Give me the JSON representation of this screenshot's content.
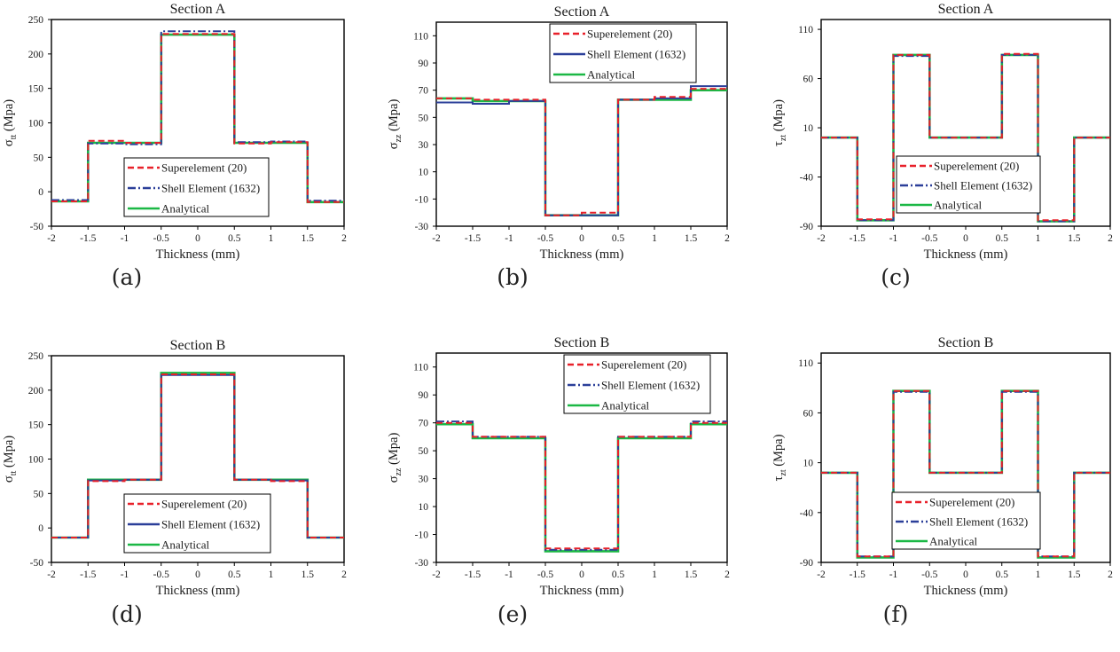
{
  "colors": {
    "superelement": "#e8212a",
    "shell": "#2b3f99",
    "analytical": "#1bb845",
    "axis": "#000000",
    "text": "#1a1a1a"
  },
  "captions": [
    "(a)",
    "(b)",
    "(c)",
    "(d)",
    "(e)",
    "(f)"
  ],
  "chart_data": [
    {
      "type": "line",
      "title": "Section A",
      "xlabel": "Thickness (mm)",
      "ylabel": "σ",
      "ylabel_sub": "tt",
      "ylabel_unit": " (Mpa)",
      "xlim": [
        -2,
        2
      ],
      "ylim": [
        -50,
        250
      ],
      "xticks": [
        -2,
        -1.5,
        -1,
        -0.5,
        0,
        0.5,
        1,
        1.5,
        2
      ],
      "xtick_labels": [
        "-2",
        "-1.5",
        "-1",
        "-0.5",
        "0",
        "0.5",
        "1",
        "1.5",
        "2"
      ],
      "yticks": [
        -50,
        0,
        50,
        100,
        150,
        200,
        250
      ],
      "ytick_labels": [
        "-50",
        "0",
        "50",
        "100",
        "150",
        "200",
        "250"
      ],
      "legend": {
        "position": "bottom-center"
      },
      "series": [
        {
          "name": "Superelement (20)",
          "style": "dashed",
          "color_key": "superelement",
          "x": [
            -2,
            -1.5,
            -1.5,
            -1,
            -1,
            -0.5,
            -0.5,
            0.5,
            0.5,
            1,
            1,
            1.5,
            1.5,
            2
          ],
          "y": [
            -14,
            -14,
            74,
            74,
            71,
            71,
            229,
            229,
            70,
            70,
            72,
            72,
            -15,
            -15
          ]
        },
        {
          "name": "Shell Element (1632)",
          "style": "dashdot",
          "color_key": "shell",
          "x": [
            -2,
            -1.5,
            -1.5,
            -1,
            -1,
            -0.5,
            -0.5,
            0.5,
            0.5,
            1,
            1,
            1.5,
            1.5,
            2
          ],
          "y": [
            -12,
            -12,
            70,
            70,
            69,
            69,
            233,
            233,
            72,
            72,
            73,
            73,
            -13,
            -13
          ]
        },
        {
          "name": "Analytical",
          "style": "solid",
          "color_key": "analytical",
          "x": [
            -2,
            -1.5,
            -1.5,
            -0.5,
            -0.5,
            0.5,
            0.5,
            1.5,
            1.5,
            2
          ],
          "y": [
            -14,
            -14,
            71,
            71,
            228,
            228,
            71,
            71,
            -15,
            -15
          ]
        }
      ]
    },
    {
      "type": "line",
      "title": "Section A",
      "xlabel": "Thickness (mm)",
      "ylabel": "σ",
      "ylabel_sub": "zz",
      "ylabel_unit": " (Mpa)",
      "xlim": [
        -2,
        2
      ],
      "ylim": [
        -30,
        120
      ],
      "xticks": [
        -2,
        -1.5,
        -1,
        -0.5,
        0,
        0.5,
        1,
        1.5,
        2
      ],
      "xtick_labels": [
        "-2",
        "-1.5",
        "-1",
        "-0.5",
        "0",
        "0.5",
        "1",
        "1.5",
        "2"
      ],
      "yticks": [
        -30,
        -10,
        10,
        30,
        50,
        70,
        90,
        110
      ],
      "ytick_labels": [
        "-30",
        "-10",
        "10",
        "30",
        "50",
        "70",
        "90",
        "110"
      ],
      "legend": {
        "position": "top-right"
      },
      "series": [
        {
          "name": "Superelement (20)",
          "style": "dashed",
          "color_key": "superelement",
          "x": [
            -2,
            -1.5,
            -1.5,
            -0.5,
            -0.5,
            0,
            0,
            0.5,
            0.5,
            1,
            1,
            1.5,
            1.5,
            2
          ],
          "y": [
            64,
            64,
            63,
            63,
            -22,
            -22,
            -20,
            -20,
            63,
            63,
            65,
            65,
            71,
            71
          ]
        },
        {
          "name": "Shell Element (1632)",
          "style": "solid",
          "color_key": "shell",
          "x": [
            -2,
            -1.5,
            -1.5,
            -1,
            -1,
            -0.5,
            -0.5,
            0.5,
            0.5,
            1,
            1,
            1.5,
            1.5,
            2
          ],
          "y": [
            61,
            61,
            60,
            60,
            62,
            62,
            -22,
            -22,
            63,
            63,
            64,
            64,
            73,
            73
          ]
        },
        {
          "name": "Analytical",
          "style": "solid",
          "color_key": "analytical",
          "x": [
            -2,
            -1.5,
            -1.5,
            -0.5,
            -0.5,
            0.5,
            0.5,
            1.5,
            1.5,
            2
          ],
          "y": [
            64,
            64,
            62,
            62,
            -22,
            -22,
            63,
            63,
            70,
            70
          ]
        }
      ]
    },
    {
      "type": "line",
      "title": "Section A",
      "xlabel": "Thickness (mm)",
      "ylabel": "τ",
      "ylabel_sub": "zt",
      "ylabel_unit": " (Mpa)",
      "xlim": [
        -2,
        2
      ],
      "ylim": [
        -90,
        120
      ],
      "xticks": [
        -2,
        -1.5,
        -1,
        -0.5,
        0,
        0.5,
        1,
        1.5,
        2
      ],
      "xtick_labels": [
        "-2",
        "-1.5",
        "-1",
        "-0.5",
        "0",
        "0.5",
        "1",
        "1.5",
        "2"
      ],
      "yticks": [
        -90,
        -40,
        10,
        60,
        110
      ],
      "ytick_labels": [
        "-90",
        "-40",
        "10",
        "60",
        "110"
      ],
      "legend": {
        "position": "bottom-center"
      },
      "series": [
        {
          "name": "Superelement (20)",
          "style": "dashed",
          "color_key": "superelement",
          "x": [
            -2,
            -1.5,
            -1.5,
            -1,
            -1,
            -0.5,
            -0.5,
            0.5,
            0.5,
            1,
            1,
            1.5,
            1.5,
            2
          ],
          "y": [
            0,
            0,
            -83,
            -83,
            84,
            84,
            0,
            0,
            85,
            85,
            -84,
            -84,
            0,
            0
          ]
        },
        {
          "name": "Shell Element (1632)",
          "style": "dashdot",
          "color_key": "shell",
          "x": [
            -2,
            -1.5,
            -1.5,
            -1,
            -1,
            -0.5,
            -0.5,
            0.5,
            0.5,
            1,
            1,
            1.5,
            1.5,
            2
          ],
          "y": [
            0,
            0,
            -84,
            -84,
            83,
            83,
            0,
            0,
            84,
            84,
            -85,
            -85,
            0,
            0
          ]
        },
        {
          "name": "Analytical",
          "style": "solid",
          "color_key": "analytical",
          "x": [
            -2,
            -1.5,
            -1.5,
            -1,
            -1,
            -0.5,
            -0.5,
            0.5,
            0.5,
            1,
            1,
            1.5,
            1.5,
            2
          ],
          "y": [
            0,
            0,
            -84,
            -84,
            84,
            84,
            0,
            0,
            84,
            84,
            -85,
            -85,
            0,
            0
          ]
        }
      ]
    },
    {
      "type": "line",
      "title": "Section B",
      "xlabel": "Thickness (mm)",
      "ylabel": "σ",
      "ylabel_sub": "tt",
      "ylabel_unit": " (Mpa)",
      "xlim": [
        -2,
        2
      ],
      "ylim": [
        -50,
        250
      ],
      "xticks": [
        -2,
        -1.5,
        -1,
        -0.5,
        0,
        0.5,
        1,
        1.5,
        2
      ],
      "xtick_labels": [
        "-2",
        "-1.5",
        "-1",
        "-0.5",
        "0",
        "0.5",
        "1",
        "1.5",
        "2"
      ],
      "yticks": [
        -50,
        0,
        50,
        100,
        150,
        200,
        250
      ],
      "ytick_labels": [
        "-50",
        "0",
        "50",
        "100",
        "150",
        "200",
        "250"
      ],
      "legend": {
        "position": "bottom-center"
      },
      "series": [
        {
          "name": "Superelement (20)",
          "style": "dashed",
          "color_key": "superelement",
          "x": [
            -2,
            -1.5,
            -1.5,
            -1,
            -1,
            -0.5,
            -0.5,
            0.5,
            0.5,
            1,
            1,
            1.5,
            1.5,
            2
          ],
          "y": [
            -14,
            -14,
            68,
            68,
            70,
            70,
            223,
            223,
            70,
            70,
            68,
            68,
            -14,
            -14
          ]
        },
        {
          "name": "Shell Element (1632)",
          "style": "solid",
          "color_key": "shell",
          "x": [
            -2,
            -1.5,
            -1.5,
            -1,
            -1,
            -0.5,
            -0.5,
            0.5,
            0.5,
            1,
            1,
            1.5,
            1.5,
            2
          ],
          "y": [
            -14,
            -14,
            69,
            69,
            70,
            70,
            222,
            222,
            70,
            70,
            69,
            69,
            -14,
            -14
          ]
        },
        {
          "name": "Analytical",
          "style": "solid",
          "color_key": "analytical",
          "x": [
            -2,
            -1.5,
            -1.5,
            -0.5,
            -0.5,
            0.5,
            0.5,
            1.5,
            1.5,
            2
          ],
          "y": [
            -14,
            -14,
            70,
            70,
            225,
            225,
            70,
            70,
            -14,
            -14
          ]
        }
      ]
    },
    {
      "type": "line",
      "title": "Section B",
      "xlabel": "Thickness (mm)",
      "ylabel": "σ",
      "ylabel_sub": "zz",
      "ylabel_unit": " (Mpa)",
      "xlim": [
        -2,
        2
      ],
      "ylim": [
        -30,
        120
      ],
      "xticks": [
        -2,
        -1.5,
        -1,
        -0.5,
        0,
        0.5,
        1,
        1.5,
        2
      ],
      "xtick_labels": [
        "-2",
        "-1.5",
        "-1",
        "-0.5",
        "0",
        "0.5",
        "1",
        "1.5",
        "2"
      ],
      "yticks": [
        -30,
        -10,
        10,
        30,
        50,
        70,
        90,
        110
      ],
      "ytick_labels": [
        "-30",
        "-10",
        "10",
        "30",
        "50",
        "70",
        "90",
        "110"
      ],
      "legend": {
        "position": "top-right"
      },
      "series": [
        {
          "name": "Superelement (20)",
          "style": "dashed",
          "color_key": "superelement",
          "x": [
            -2,
            -1.5,
            -1.5,
            -0.5,
            -0.5,
            0.5,
            0.5,
            1.5,
            1.5,
            2
          ],
          "y": [
            70,
            70,
            60,
            60,
            -20,
            -20,
            60,
            60,
            70,
            70
          ]
        },
        {
          "name": "Shell Element (1632)",
          "style": "dashdot",
          "color_key": "shell",
          "x": [
            -2,
            -1.5,
            -1.5,
            -0.5,
            -0.5,
            0.5,
            0.5,
            1.5,
            1.5,
            2
          ],
          "y": [
            71,
            71,
            60,
            60,
            -21,
            -21,
            60,
            60,
            71,
            71
          ]
        },
        {
          "name": "Analytical",
          "style": "solid",
          "color_key": "analytical",
          "x": [
            -2,
            -1.5,
            -1.5,
            -0.5,
            -0.5,
            0.5,
            0.5,
            1.5,
            1.5,
            2
          ],
          "y": [
            69,
            69,
            59,
            59,
            -22,
            -22,
            59,
            59,
            69,
            69
          ]
        }
      ]
    },
    {
      "type": "line",
      "title": "Section B",
      "xlabel": "Thickness (mm)",
      "ylabel": "τ",
      "ylabel_sub": "zt",
      "ylabel_unit": " (Mpa)",
      "xlim": [
        -2,
        2
      ],
      "ylim": [
        -90,
        120
      ],
      "xticks": [
        -2,
        -1.5,
        -1,
        -0.5,
        0,
        0.5,
        1,
        1.5,
        2
      ],
      "xtick_labels": [
        "-2",
        "-1.5",
        "-1",
        "-0.5",
        "0",
        "0.5",
        "1",
        "1.5",
        "2"
      ],
      "yticks": [
        -90,
        -40,
        10,
        60,
        110
      ],
      "ytick_labels": [
        "-90",
        "-40",
        "10",
        "60",
        "110"
      ],
      "legend": {
        "position": "bottom-center"
      },
      "series": [
        {
          "name": "Superelement (20)",
          "style": "dashed",
          "color_key": "superelement",
          "x": [
            -2,
            -1.5,
            -1.5,
            -1,
            -1,
            -0.5,
            -0.5,
            0.5,
            0.5,
            1,
            1,
            1.5,
            1.5,
            2
          ],
          "y": [
            0,
            0,
            -84,
            -84,
            82,
            82,
            0,
            0,
            82,
            82,
            -84,
            -84,
            0,
            0
          ]
        },
        {
          "name": "Shell Element (1632)",
          "style": "dashdot",
          "color_key": "shell",
          "x": [
            -2,
            -1.5,
            -1.5,
            -1,
            -1,
            -0.5,
            -0.5,
            0.5,
            0.5,
            1,
            1,
            1.5,
            1.5,
            2
          ],
          "y": [
            0,
            0,
            -84,
            -84,
            81,
            81,
            0,
            0,
            81,
            81,
            -84,
            -84,
            0,
            0
          ]
        },
        {
          "name": "Analytical",
          "style": "solid",
          "color_key": "analytical",
          "x": [
            -2,
            -1.5,
            -1.5,
            -1,
            -1,
            -0.5,
            -0.5,
            0.5,
            0.5,
            1,
            1,
            1.5,
            1.5,
            2
          ],
          "y": [
            0,
            0,
            -85,
            -85,
            82,
            82,
            0,
            0,
            82,
            82,
            -85,
            -85,
            0,
            0
          ]
        }
      ]
    }
  ]
}
